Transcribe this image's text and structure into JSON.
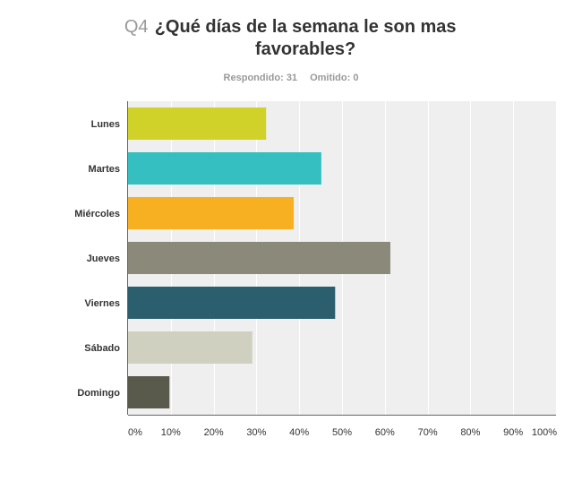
{
  "question": {
    "number": "Q4",
    "text": "¿Qué días de la semana le son mas favorables?"
  },
  "stats": {
    "answered": "Respondido: 31",
    "skipped": "Omitido: 0"
  },
  "chart_data": {
    "type": "bar",
    "orientation": "horizontal",
    "title": "¿Qué días de la semana le son mas favorables?",
    "categories": [
      "Lunes",
      "Martes",
      "Miércoles",
      "Jueves",
      "Viernes",
      "Sábado",
      "Domingo"
    ],
    "values": [
      32.26,
      45.16,
      38.71,
      61.29,
      48.39,
      29.03,
      9.68
    ],
    "unit": "%",
    "xlim": [
      0,
      100
    ],
    "ticks": [
      "0%",
      "10%",
      "20%",
      "30%",
      "40%",
      "50%",
      "60%",
      "70%",
      "80%",
      "90%",
      "100%"
    ],
    "colors": [
      "#d0d22a",
      "#35bfc0",
      "#f6b021",
      "#8b8a7a",
      "#2c5f6d",
      "#d0d0c0",
      "#5a5a4c"
    ],
    "grid": true,
    "background": "#efefef",
    "legend": "none"
  }
}
